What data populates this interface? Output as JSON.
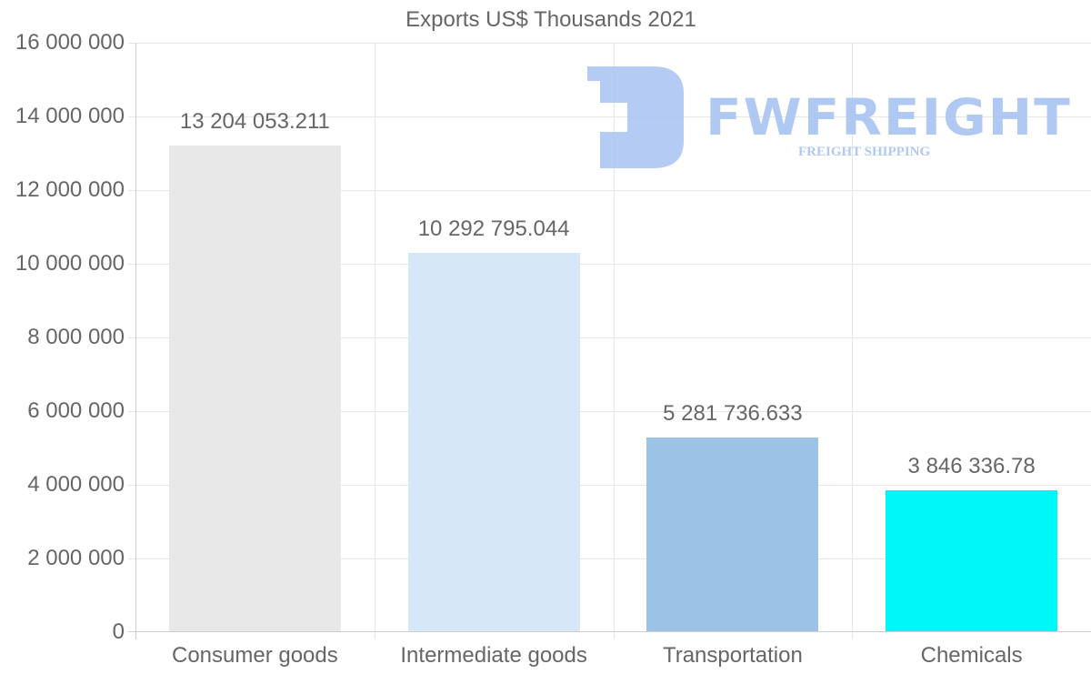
{
  "chart_data": {
    "type": "bar",
    "title": "Exports US$ Thousands 2021",
    "categories": [
      "Consumer goods",
      "Intermediate goods",
      "Transportation",
      "Chemicals"
    ],
    "values": [
      13204053.211,
      10292795.044,
      5281736.633,
      3846336.78
    ],
    "value_labels": [
      "13 204 053.211",
      "10 292 795.044",
      "5 281 736.633",
      "3 846 336.78"
    ],
    "colors": [
      "#e8e8e8",
      "#d6e7f8",
      "#9cc3e6",
      "#00f7f7"
    ],
    "xlabel": "",
    "ylabel": "",
    "ylim": [
      0,
      16000000
    ],
    "yticks": [
      0,
      2000000,
      4000000,
      6000000,
      8000000,
      10000000,
      12000000,
      14000000,
      16000000
    ],
    "ytick_labels": [
      "0",
      "2 000 000",
      "4 000 000",
      "6 000 000",
      "8 000 000",
      "10 000 000",
      "12 000 000",
      "14 000 000",
      "16 000 000"
    ],
    "grid": true,
    "legend": "none"
  },
  "watermark": {
    "brand": "FWFREIGHT",
    "tagline": "FREIGHT SHIPPING",
    "color": "#a7c4f2"
  }
}
